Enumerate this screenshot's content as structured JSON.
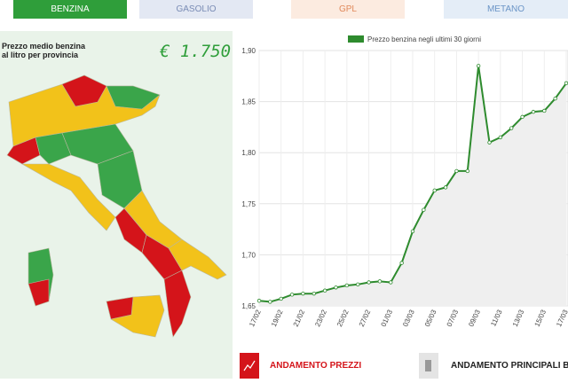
{
  "tabs": [
    "BENZINA",
    "GASOLIO",
    "GPL",
    "METANO"
  ],
  "map": {
    "title_line1": "Prezzo medio benzina",
    "title_line2": "al litro per provincia",
    "price": "€ 1.750"
  },
  "buttons": [
    "ANDAMENTO PREZZI",
    "ANDAMENTO PRINCIPALI BRAN"
  ],
  "chart_data": {
    "type": "line",
    "categories": [
      "17/02",
      null,
      "19/02",
      null,
      "21/02",
      null,
      "23/02",
      null,
      "25/02",
      null,
      "27/02",
      null,
      "01/03",
      null,
      "03/03",
      null,
      "05/03",
      null,
      "07/03",
      null,
      "09/03",
      null,
      "11/03",
      null,
      "13/03",
      null,
      "15/03",
      null,
      "17/03"
    ],
    "series": [
      {
        "name": "Prezzo benzina negli ultimi 30 giorni",
        "color": "#2e8b2e",
        "values": [
          1.655,
          1.654,
          1.657,
          1.661,
          1.662,
          1.662,
          1.665,
          1.668,
          1.67,
          1.671,
          1.673,
          1.674,
          1.673,
          1.692,
          1.723,
          1.744,
          1.763,
          1.766,
          1.782,
          1.782,
          1.885,
          1.81,
          1.815,
          1.824,
          1.835,
          1.84,
          1.841,
          1.853,
          1.868
        ]
      }
    ],
    "ylim": [
      1.65,
      1.9
    ],
    "yticks": [
      {
        "value": 1.65,
        "label": "1,65"
      },
      {
        "value": 1.7,
        "label": "1,70"
      },
      {
        "value": 1.75,
        "label": "1,75"
      },
      {
        "value": 1.8,
        "label": "1,80"
      },
      {
        "value": 1.85,
        "label": "1,85"
      },
      {
        "value": 1.9,
        "label": "1,90"
      }
    ],
    "grid": true
  }
}
